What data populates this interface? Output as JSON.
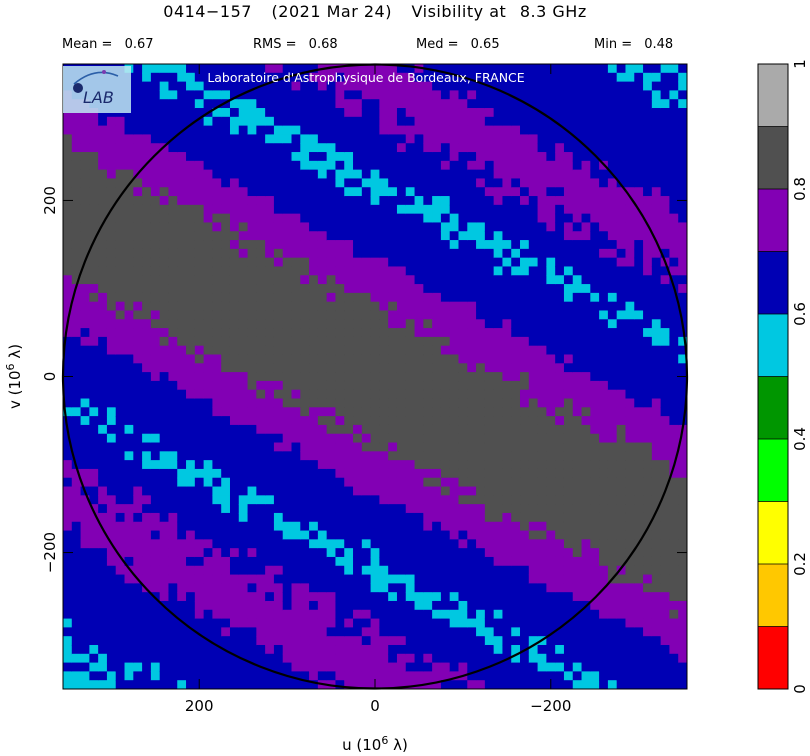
{
  "title": {
    "source": "0414−157",
    "date": "(2021 Mar 24)",
    "product": "Visibility at",
    "frequency": "8.3 GHz"
  },
  "stats": [
    {
      "label": "Mean =",
      "value": "0.67"
    },
    {
      "label": "RMS =",
      "value": "0.68"
    },
    {
      "label": "Med =",
      "value": "0.65"
    },
    {
      "label": "Min =",
      "value": "0.48"
    }
  ],
  "watermark": "Laboratoire d'Astrophysique de Bordeaux, FRANCE",
  "logo": "LAB",
  "logo_icon": "lab-logo-icon",
  "chart_data": {
    "type": "heatmap",
    "title": "0414−157 (2021 Mar 24) Visibility at 8.3 GHz",
    "xlabel": "u (10^6 λ)",
    "ylabel": "v (10^6 λ)",
    "xlim": [
      355,
      -355
    ],
    "ylim": [
      -355,
      355
    ],
    "x_ticks": [
      200,
      0,
      -200
    ],
    "x_tick_labels": [
      "200",
      "0",
      "−200"
    ],
    "y_ticks": [
      200,
      0,
      -200
    ],
    "y_tick_labels": [
      "200",
      "0",
      "−200"
    ],
    "uv_circle_radius": 355,
    "band_angle_deg": 28,
    "band_profile": [
      {
        "distance": 0,
        "value": 0.86
      },
      {
        "distance": 55,
        "value": 0.82
      },
      {
        "distance": 100,
        "value": 0.75
      },
      {
        "distance": 130,
        "value": 0.66
      },
      {
        "distance": 200,
        "value": 0.59
      },
      {
        "distance": 240,
        "value": 0.68
      },
      {
        "distance": 300,
        "value": 0.74
      },
      {
        "distance": 350,
        "value": 0.66
      },
      {
        "distance": 460,
        "value": 0.59
      }
    ],
    "colorbar": {
      "range": [
        0,
        1
      ],
      "ticks": [
        0,
        0.2,
        0.4,
        0.6,
        0.8,
        1
      ],
      "tick_labels": [
        "0",
        "0.2",
        "0.4",
        "0.6",
        "0.8",
        "1"
      ],
      "levels": [
        {
          "from": 0.0,
          "to": 0.1,
          "color": "#ff0000"
        },
        {
          "from": 0.1,
          "to": 0.2,
          "color": "#ffc800"
        },
        {
          "from": 0.2,
          "to": 0.3,
          "color": "#ffff00"
        },
        {
          "from": 0.3,
          "to": 0.4,
          "color": "#00ff00"
        },
        {
          "from": 0.4,
          "to": 0.5,
          "color": "#009600"
        },
        {
          "from": 0.5,
          "to": 0.6,
          "color": "#00c8e1"
        },
        {
          "from": 0.6,
          "to": 0.7,
          "color": "#0000b4"
        },
        {
          "from": 0.7,
          "to": 0.8,
          "color": "#8200b4"
        },
        {
          "from": 0.8,
          "to": 0.9,
          "color": "#505050"
        },
        {
          "from": 0.9,
          "to": 1.0,
          "color": "#aaaaaa"
        }
      ]
    }
  }
}
